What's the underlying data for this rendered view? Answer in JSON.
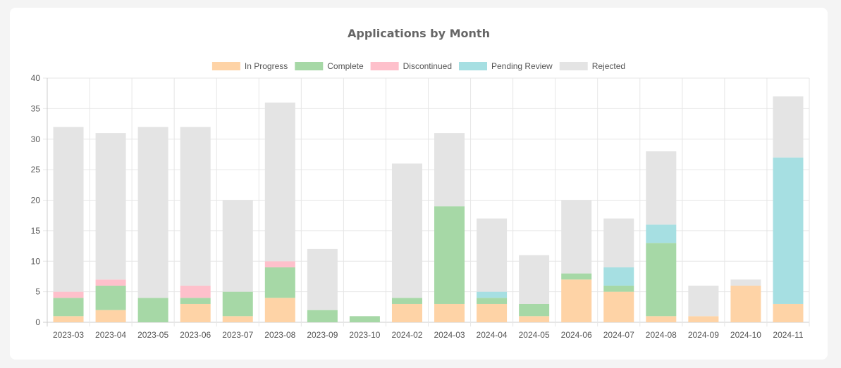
{
  "chart_data": {
    "type": "bar",
    "stacked": true,
    "title": "Applications by Month",
    "categories": [
      "2023-03",
      "2023-04",
      "2023-05",
      "2023-06",
      "2023-07",
      "2023-08",
      "2023-09",
      "2023-10",
      "2024-02",
      "2024-03",
      "2024-04",
      "2024-05",
      "2024-06",
      "2024-07",
      "2024-08",
      "2024-09",
      "2024-10",
      "2024-11"
    ],
    "ylim": [
      0,
      40
    ],
    "yticks": [
      "0",
      "5",
      "10",
      "15",
      "20",
      "25",
      "30",
      "35",
      "40"
    ],
    "grid": true,
    "legend_position": "top",
    "series": [
      {
        "name": "In Progress",
        "color": "#fed3a6",
        "values": [
          1,
          2,
          0,
          3,
          1,
          4,
          0,
          0,
          3,
          3,
          3,
          1,
          7,
          5,
          1,
          1,
          6,
          3
        ]
      },
      {
        "name": "Complete",
        "color": "#a6d8a6",
        "values": [
          3,
          4,
          4,
          1,
          4,
          5,
          2,
          1,
          1,
          16,
          1,
          2,
          1,
          1,
          12,
          0,
          0,
          0
        ]
      },
      {
        "name": "Discontinued",
        "color": "#fec0cb",
        "values": [
          1,
          1,
          0,
          2,
          0,
          1,
          0,
          0,
          0,
          0,
          0,
          0,
          0,
          0,
          0,
          0,
          0,
          0
        ]
      },
      {
        "name": "Pending Review",
        "color": "#a6dfe2",
        "values": [
          0,
          0,
          0,
          0,
          0,
          0,
          0,
          0,
          0,
          0,
          1,
          0,
          0,
          3,
          3,
          0,
          0,
          24
        ]
      },
      {
        "name": "Rejected",
        "color": "#e4e4e4",
        "values": [
          27,
          24,
          28,
          26,
          15,
          26,
          10,
          0,
          22,
          12,
          12,
          8,
          12,
          8,
          12,
          5,
          1,
          10
        ]
      }
    ]
  }
}
